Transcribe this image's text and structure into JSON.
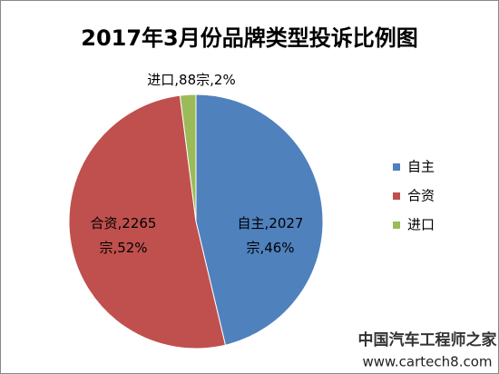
{
  "chart_data": {
    "type": "pie",
    "title": "2017年3月份品牌类型投诉比例图",
    "categories": [
      "自主",
      "合资",
      "进口"
    ],
    "values": [
      2027,
      2265,
      88
    ],
    "value_labels": [
      "自主,2027宗,46%",
      "合资,2265宗,52%",
      "进口,88宗,2%"
    ],
    "colors": [
      "#4f81bd",
      "#c0504d",
      "#9bbb59"
    ],
    "legend": "right"
  },
  "watermark": [
    "中国汽车工程师之家",
    "www.cartech8.com"
  ]
}
